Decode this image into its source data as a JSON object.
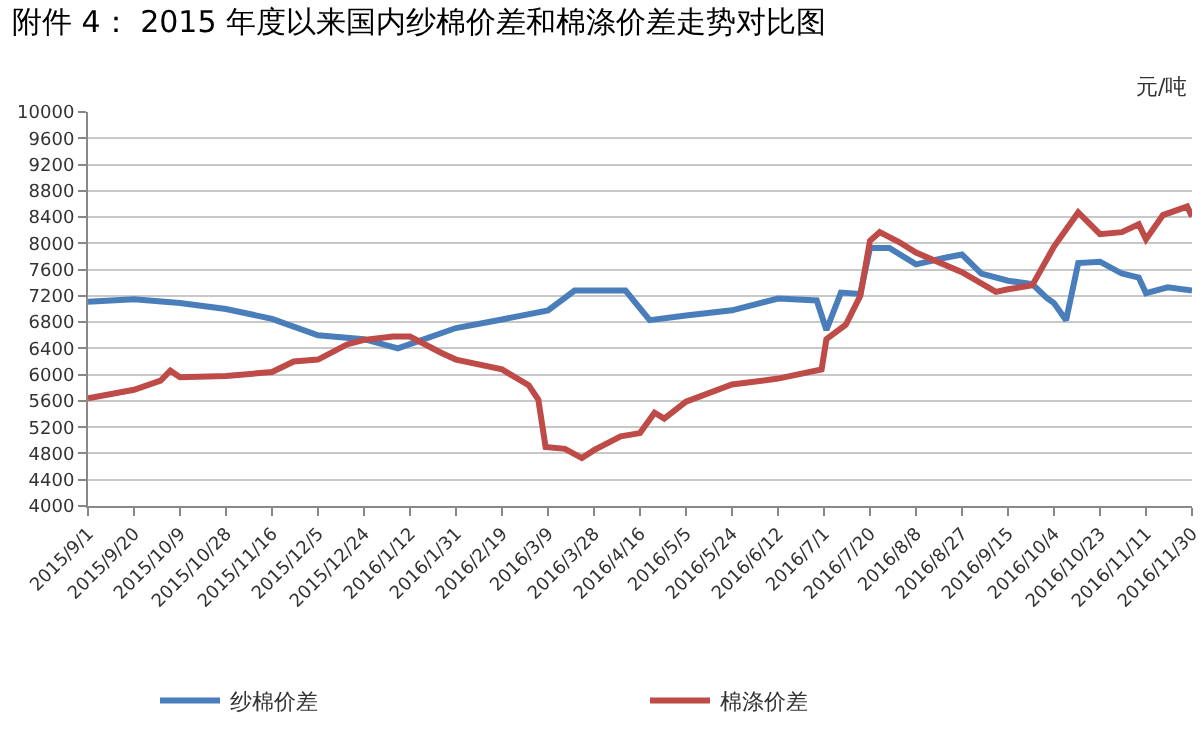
{
  "chart_data": {
    "type": "line",
    "title": "附件 4： 2015 年度以来国内纱棉价差和棉涤价差走势对比图",
    "ylabel": "元/吨",
    "ylim": [
      4000,
      10000
    ],
    "yticks": [
      4000,
      4400,
      4800,
      5200,
      5600,
      6000,
      6400,
      6800,
      7200,
      7600,
      8000,
      8400,
      8800,
      9200,
      9600,
      10000
    ],
    "xlim": [
      "2015-09-01",
      "2016-11-30"
    ],
    "xticks": [
      {
        "value": "2015-09-01",
        "label": "2015/9/1"
      },
      {
        "value": "2015-09-20",
        "label": "2015/9/20"
      },
      {
        "value": "2015-10-09",
        "label": "2015/10/9"
      },
      {
        "value": "2015-10-28",
        "label": "2015/10/28"
      },
      {
        "value": "2015-11-16",
        "label": "2015/11/16"
      },
      {
        "value": "2015-12-05",
        "label": "2015/12/5"
      },
      {
        "value": "2015-12-24",
        "label": "2015/12/24"
      },
      {
        "value": "2016-01-12",
        "label": "2016/1/12"
      },
      {
        "value": "2016-01-31",
        "label": "2016/1/31"
      },
      {
        "value": "2016-02-19",
        "label": "2016/2/19"
      },
      {
        "value": "2016-03-09",
        "label": "2016/3/9"
      },
      {
        "value": "2016-03-28",
        "label": "2016/3/28"
      },
      {
        "value": "2016-04-16",
        "label": "2016/4/16"
      },
      {
        "value": "2016-05-05",
        "label": "2016/5/5"
      },
      {
        "value": "2016-05-24",
        "label": "2016/5/24"
      },
      {
        "value": "2016-06-12",
        "label": "2016/6/12"
      },
      {
        "value": "2016-07-01",
        "label": "2016/7/1"
      },
      {
        "value": "2016-07-20",
        "label": "2016/7/20"
      },
      {
        "value": "2016-08-08",
        "label": "2016/8/8"
      },
      {
        "value": "2016-08-27",
        "label": "2016/8/27"
      },
      {
        "value": "2016-09-15",
        "label": "2016/9/15"
      },
      {
        "value": "2016-10-04",
        "label": "2016/10/4"
      },
      {
        "value": "2016-10-23",
        "label": "2016/10/23"
      },
      {
        "value": "2016-11-11",
        "label": "2016/11/11"
      },
      {
        "value": "2016-11-30",
        "label": "2016/11/30"
      }
    ],
    "grid": "y",
    "legend": "bottom",
    "marker": "none",
    "line_style": "solid",
    "series": [
      {
        "name": "纱棉价差",
        "color": "#4a7ebb",
        "x": [
          "2015-09-01",
          "2015-09-20",
          "2015-10-09",
          "2015-10-28",
          "2015-11-16",
          "2015-12-05",
          "2015-12-24",
          "2016-01-07",
          "2016-01-31",
          "2016-02-19",
          "2016-03-09",
          "2016-03-20",
          "2016-03-28",
          "2016-04-10",
          "2016-04-20",
          "2016-05-05",
          "2016-05-24",
          "2016-06-12",
          "2016-06-28",
          "2016-07-02",
          "2016-07-08",
          "2016-07-16",
          "2016-07-20",
          "2016-07-28",
          "2016-08-08",
          "2016-08-20",
          "2016-08-27",
          "2016-09-04",
          "2016-09-15",
          "2016-09-25",
          "2016-10-01",
          "2016-10-04",
          "2016-10-09",
          "2016-10-14",
          "2016-10-23",
          "2016-11-01",
          "2016-11-08",
          "2016-11-11",
          "2016-11-20",
          "2016-11-30"
        ],
        "values": [
          7110,
          7150,
          7090,
          7000,
          6850,
          6600,
          6540,
          6400,
          6710,
          6840,
          6980,
          7280,
          7280,
          7280,
          6830,
          6900,
          6980,
          7160,
          7130,
          6680,
          7250,
          7230,
          7930,
          7930,
          7680,
          7780,
          7830,
          7540,
          7430,
          7380,
          7170,
          7090,
          6830,
          7700,
          7720,
          7540,
          7480,
          7240,
          7330,
          7280
        ]
      },
      {
        "name": "棉涤价差",
        "color": "#be4b48",
        "x": [
          "2015-09-01",
          "2015-09-20",
          "2015-10-01",
          "2015-10-05",
          "2015-10-09",
          "2015-10-28",
          "2015-11-16",
          "2015-11-25",
          "2015-12-05",
          "2015-12-17",
          "2015-12-24",
          "2016-01-05",
          "2016-01-12",
          "2016-01-25",
          "2016-01-31",
          "2016-02-19",
          "2016-03-01",
          "2016-03-05",
          "2016-03-08",
          "2016-03-16",
          "2016-03-23",
          "2016-03-28",
          "2016-04-08",
          "2016-04-16",
          "2016-04-22",
          "2016-04-26",
          "2016-05-05",
          "2016-05-24",
          "2016-06-12",
          "2016-06-30",
          "2016-07-02",
          "2016-07-10",
          "2016-07-16",
          "2016-07-20",
          "2016-07-24",
          "2016-08-01",
          "2016-08-08",
          "2016-08-27",
          "2016-09-10",
          "2016-09-15",
          "2016-09-25",
          "2016-10-04",
          "2016-10-14",
          "2016-10-23",
          "2016-11-01",
          "2016-11-08",
          "2016-11-11",
          "2016-11-18",
          "2016-11-28",
          "2016-11-30"
        ],
        "values": [
          5640,
          5770,
          5910,
          6060,
          5960,
          5980,
          6040,
          6200,
          6230,
          6460,
          6530,
          6580,
          6580,
          6330,
          6230,
          6080,
          5840,
          5620,
          4900,
          4870,
          4730,
          4850,
          5060,
          5110,
          5420,
          5330,
          5590,
          5850,
          5940,
          6080,
          6540,
          6760,
          7200,
          8040,
          8170,
          8020,
          7860,
          7560,
          7260,
          7300,
          7360,
          7950,
          8470,
          8140,
          8170,
          8290,
          8060,
          8430,
          8560,
          8410
        ]
      }
    ]
  }
}
